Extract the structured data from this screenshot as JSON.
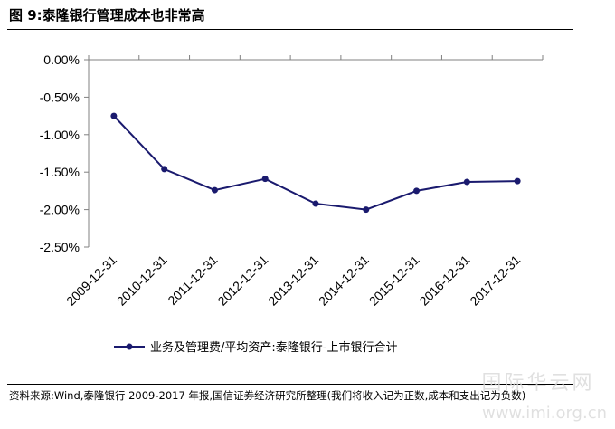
{
  "figure": {
    "title": "图 9:泰隆银行管理成本也非常高",
    "source_note": "资料来源:Wind,泰隆银行 2009-2017 年报,国信证券经济研究所整理(我们将收入记为正数,成本和支出记为负数)",
    "watermark": "国际华云网",
    "watermark_url": "www.imi.org.cn"
  },
  "chart_data": {
    "type": "line",
    "categories": [
      "2009-12-31",
      "2010-12-31",
      "2011-12-31",
      "2012-12-31",
      "2013-12-31",
      "2014-12-31",
      "2015-12-31",
      "2016-12-31",
      "2017-12-31"
    ],
    "series": [
      {
        "name": "业务及管理费/平均资产:泰隆银行-上市银行合计",
        "values": [
          -0.0075,
          -0.0146,
          -0.0174,
          -0.0159,
          -0.0192,
          -0.02,
          -0.0175,
          -0.0163,
          -0.0162
        ],
        "color": "#1a1a6e"
      }
    ],
    "yticks": [
      "0.00%",
      "-0.50%",
      "-1.00%",
      "-1.50%",
      "-2.00%",
      "-2.50%"
    ],
    "ylim": [
      -0.025,
      0
    ],
    "grid": false,
    "legend_position": "bottom"
  }
}
